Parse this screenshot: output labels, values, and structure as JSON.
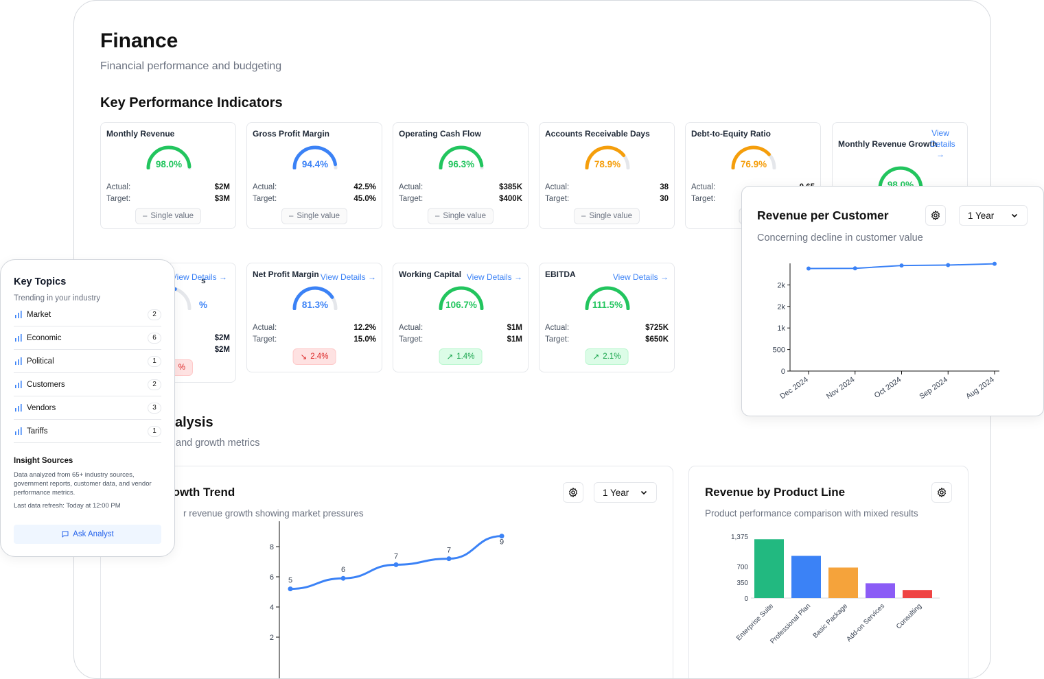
{
  "page": {
    "title": "Finance",
    "subtitle": "Financial performance and budgeting"
  },
  "kpi_section": {
    "title": "Key Performance Indicators"
  },
  "analysis_section": {
    "title": "alysis",
    "subtitle": "and growth metrics"
  },
  "kpis_row1": [
    {
      "title": "Monthly Revenue",
      "value": "98.0%",
      "fraction": 0.98,
      "color": "#22c55e",
      "actual_label": "Actual:",
      "actual": "$2M",
      "target_label": "Target:",
      "target": "$3M",
      "badge": "Single value",
      "badge_icon": "–"
    },
    {
      "title": "Gross Profit Margin",
      "value": "94.4%",
      "fraction": 0.944,
      "color": "#3b82f6",
      "actual_label": "Actual:",
      "actual": "42.5%",
      "target_label": "Target:",
      "target": "45.0%",
      "badge": "Single value",
      "badge_icon": "–"
    },
    {
      "title": "Operating Cash Flow",
      "value": "96.3%",
      "fraction": 0.963,
      "color": "#22c55e",
      "actual_label": "Actual:",
      "actual": "$385K",
      "target_label": "Target:",
      "target": "$400K",
      "badge": "Single value",
      "badge_icon": "–"
    },
    {
      "title": "Accounts Receivable Days",
      "value": "78.9%",
      "fraction": 0.789,
      "color": "#f59e0b",
      "actual_label": "Actual:",
      "actual": "38",
      "target_label": "Target:",
      "target": "30",
      "badge": "Single value",
      "badge_icon": "–"
    },
    {
      "title": "Debt-to-Equity Ratio",
      "value": "76.9%",
      "fraction": 0.769,
      "color": "#f59e0b",
      "actual_label": "Actual:",
      "actual": "0.65",
      "target_label": "Target:",
      "target": "",
      "badge": "S",
      "badge_icon": "–"
    }
  ],
  "kpi_growth": {
    "title": "Monthly Revenue Growth",
    "link": "View Details →",
    "value": "98.0%",
    "fraction": 0.98,
    "color": "#22c55e"
  },
  "kpis_row2": [
    {
      "title": "s",
      "link": "View Details →",
      "value": "%",
      "fraction": 0.6,
      "color": "#3b82f6",
      "actual": "$2M",
      "target": "$2M",
      "badge": "%",
      "badge_type": "red"
    },
    {
      "title": "Net Profit Margin",
      "link": "View Details →",
      "value": "81.3%",
      "fraction": 0.813,
      "color": "#3b82f6",
      "actual_label": "Actual:",
      "actual": "12.2%",
      "target_label": "Target:",
      "target": "15.0%",
      "badge": "2.4%",
      "badge_icon": "↘",
      "badge_type": "red"
    },
    {
      "title": "Working Capital",
      "link": "View Details →",
      "value": "106.7%",
      "fraction": 1.0,
      "color": "#22c55e",
      "actual_label": "Actual:",
      "actual": "$1M",
      "target_label": "Target:",
      "target": "$1M",
      "badge": "1.4%",
      "badge_icon": "↗",
      "badge_type": "green"
    },
    {
      "title": "EBITDA",
      "link": "View Details →",
      "value": "111.5%",
      "fraction": 1.0,
      "color": "#22c55e",
      "actual_label": "Actual:",
      "actual": "$725K",
      "target_label": "Target:",
      "target": "$650K",
      "badge": "2.1%",
      "badge_icon": "↗",
      "badge_type": "green"
    }
  ],
  "growth_card": {
    "title": "rowth Trend",
    "subtitle": "r revenue growth showing market pressures",
    "range": "1 Year"
  },
  "product_card": {
    "title": "Revenue by Product Line",
    "subtitle": "Product performance comparison with mixed results"
  },
  "rpc_card": {
    "title": "Revenue per Customer",
    "subtitle": "Concerning decline in customer value",
    "range": "1 Year"
  },
  "topics": {
    "title": "Key Topics",
    "subtitle": "Trending in your industry",
    "items": [
      {
        "label": "Market",
        "count": "2"
      },
      {
        "label": "Economic",
        "count": "6"
      },
      {
        "label": "Political",
        "count": "1"
      },
      {
        "label": "Customers",
        "count": "2"
      },
      {
        "label": "Vendors",
        "count": "3"
      },
      {
        "label": "Tariffs",
        "count": "1"
      }
    ],
    "sources_title": "Insight Sources",
    "sources_text": "Data analyzed from 65+ industry sources, government reports, customer data, and vendor performance metrics.",
    "refresh": "Last data refresh: Today at 12:00 PM",
    "button": "Ask Analyst"
  },
  "chart_data": [
    {
      "type": "line",
      "title": "Revenue per Customer",
      "categories": [
        "Dec 2024",
        "Nov 2024",
        "Oct 2024",
        "Sep 2024",
        "Aug 2024"
      ],
      "values": [
        2380,
        2385,
        2450,
        2460,
        2490
      ],
      "yticks": [
        "0",
        "500",
        "1k",
        "2k",
        "2k"
      ],
      "ylim": [
        0,
        2500
      ],
      "color": "#3b82f6"
    },
    {
      "type": "line",
      "title": "Growth Trend",
      "x": [
        1,
        2,
        3,
        4,
        5
      ],
      "values": [
        5.2,
        5.9,
        6.8,
        7.2,
        8.7
      ],
      "labels": [
        "5",
        "6",
        "7",
        "7",
        "9"
      ],
      "yticks": [
        "2",
        "4",
        "6",
        "8"
      ],
      "ylim": [
        0,
        9
      ],
      "color": "#3b82f6"
    },
    {
      "type": "bar",
      "title": "Revenue by Product Line",
      "categories": [
        "Enterprise Suite",
        "Professional Plan",
        "Basic Package",
        "Add-on Services",
        "Consulting"
      ],
      "values": [
        1310,
        940,
        680,
        330,
        180
      ],
      "colors": [
        "#22b980",
        "#3b82f6",
        "#f5a33b",
        "#8b5cf6",
        "#ef4444"
      ],
      "yticks": [
        "0",
        "350",
        "700",
        "1,375"
      ],
      "ylim": [
        0,
        1375
      ]
    }
  ]
}
